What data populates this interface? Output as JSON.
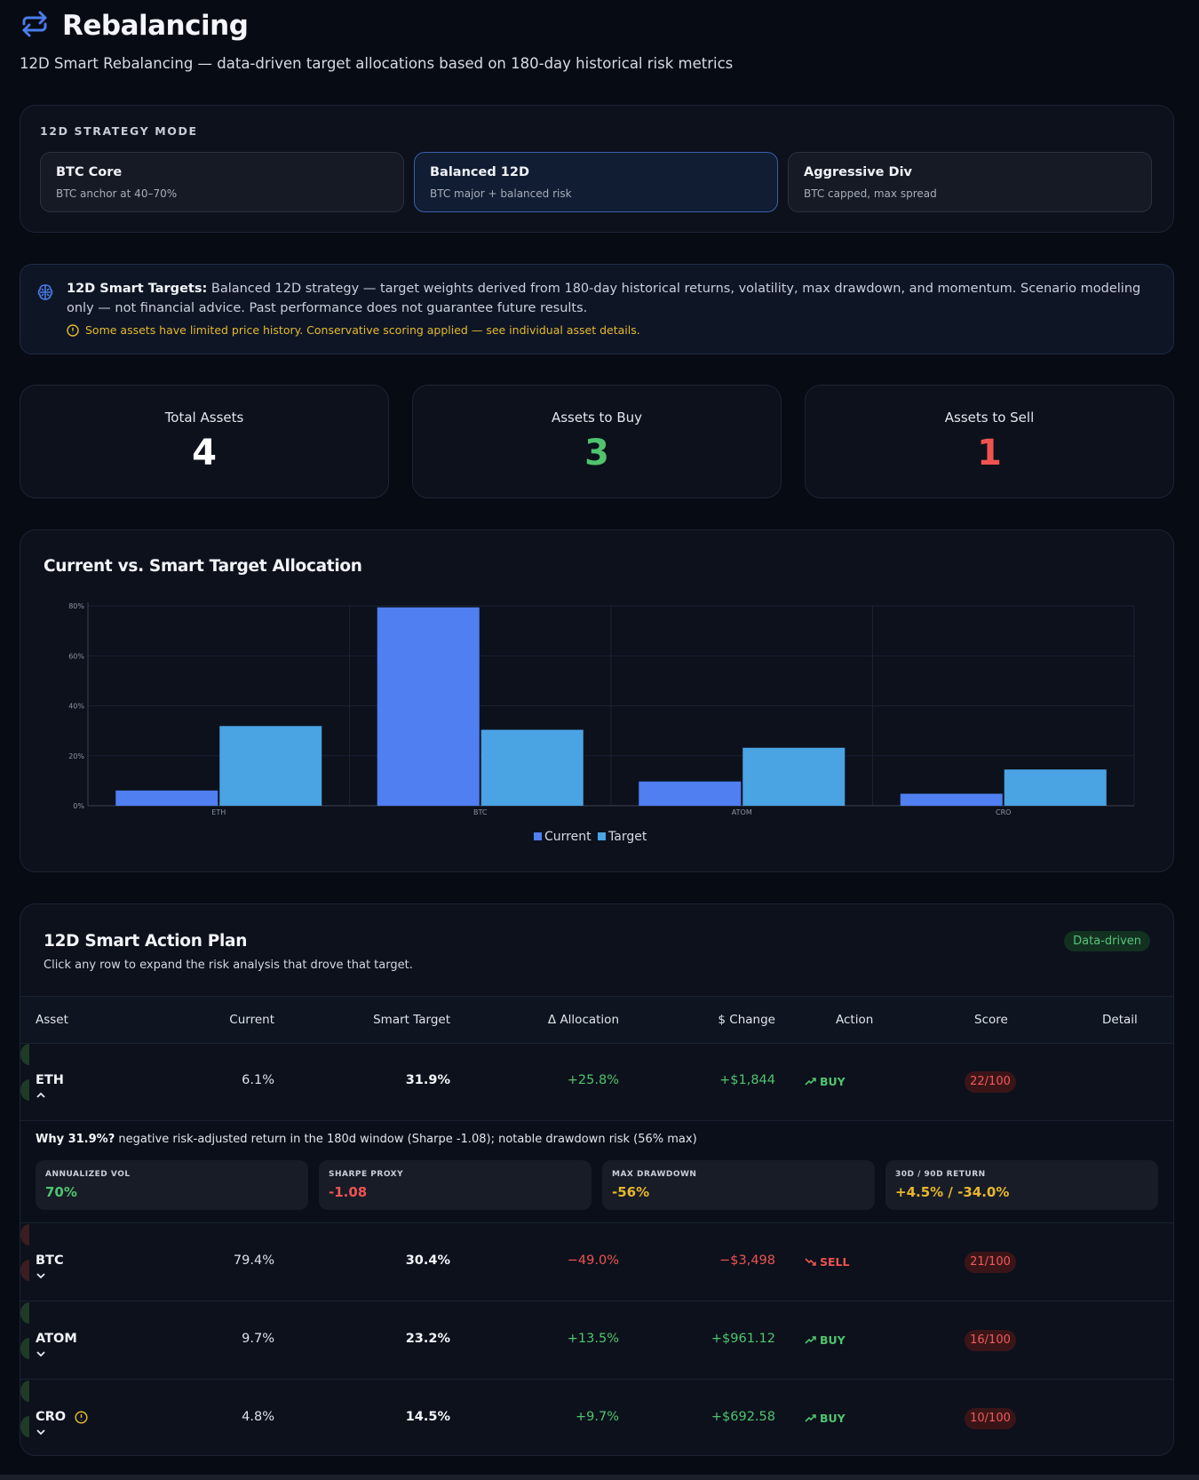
{
  "header": {
    "title": "Rebalancing",
    "subtitle": "12D Smart Rebalancing — data-driven target allocations based on 180-day historical risk metrics"
  },
  "strategy": {
    "label": "12D STRATEGY MODE",
    "options": [
      {
        "name": "BTC Core",
        "desc": "BTC anchor at 40–70%",
        "active": false
      },
      {
        "name": "Balanced 12D",
        "desc": "BTC major + balanced risk",
        "active": true
      },
      {
        "name": "Aggressive Div",
        "desc": "BTC capped, max spread",
        "active": false
      }
    ]
  },
  "info": {
    "bold": "12D Smart Targets:",
    "text": " Balanced 12D strategy — target weights derived from 180-day historical returns, volatility, max drawdown, and momentum. Scenario modeling only — not financial advice. Past performance does not guarantee future results.",
    "warning": "Some assets have limited price history. Conservative scoring applied — see individual asset details."
  },
  "stats": [
    {
      "label": "Total Assets",
      "value": "4"
    },
    {
      "label": "Assets to Buy",
      "value": "3"
    },
    {
      "label": "Assets to Sell",
      "value": "1"
    }
  ],
  "chart": {
    "title": "Current vs. Smart Target Allocation"
  },
  "chart_data": {
    "type": "bar",
    "categories": [
      "ETH",
      "BTC",
      "ATOM",
      "CRO"
    ],
    "series": [
      {
        "name": "Current",
        "values": [
          6.1,
          79.4,
          9.7,
          4.8
        ],
        "color": "#4f7ff0"
      },
      {
        "name": "Target",
        "values": [
          31.9,
          30.4,
          23.2,
          14.5
        ],
        "color": "#4aa3e3"
      }
    ],
    "yticks": [
      "0%",
      "20%",
      "40%",
      "60%",
      "80%"
    ],
    "ylim": [
      0,
      80
    ],
    "grid": true,
    "legend": "bottom"
  },
  "plan": {
    "title": "12D Smart Action Plan",
    "subtitle": "Click any row to expand the risk analysis that drove that target.",
    "badge": "Data-driven",
    "columns": {
      "asset": "Asset",
      "current": "Current",
      "target": "Smart Target",
      "alloc": "Δ Allocation",
      "change": "$ Change",
      "action": "Action",
      "score": "Score",
      "detail": "Detail"
    },
    "rows": [
      {
        "asset": "ETH",
        "current": "6.1%",
        "target": "31.9%",
        "alloc": "+25.8%",
        "change": "+$1,844",
        "action": "BUY",
        "score": "22/100"
      },
      {
        "asset": "BTC",
        "current": "79.4%",
        "target": "30.4%",
        "alloc": "−49.0%",
        "change": "−$3,498",
        "action": "SELL",
        "score": "21/100"
      },
      {
        "asset": "ATOM",
        "current": "9.7%",
        "target": "23.2%",
        "alloc": "+13.5%",
        "change": "+$961.12",
        "action": "BUY",
        "score": "16/100"
      },
      {
        "asset": "CRO",
        "current": "4.8%",
        "target": "14.5%",
        "alloc": "+9.7%",
        "change": "+$692.58",
        "action": "BUY",
        "score": "10/100"
      }
    ],
    "expanded": {
      "why_bold": "Why 31.9%?",
      "why_text": " negative risk-adjusted return in the 180d window (Sharpe -1.08); notable drawdown risk (56% max)",
      "metrics": [
        {
          "label": "ANNUALIZED VOL",
          "value": "70%",
          "color": "#4fc46d"
        },
        {
          "label": "SHARPE PROXY",
          "value": "-1.08",
          "color": "#ef5350"
        },
        {
          "label": "MAX DRAWDOWN",
          "value": "-56%",
          "color": "#e9b72c"
        },
        {
          "label": "30D / 90D RETURN",
          "value": "+4.5% / -34.0%",
          "color": "#e9b72c"
        }
      ]
    }
  }
}
